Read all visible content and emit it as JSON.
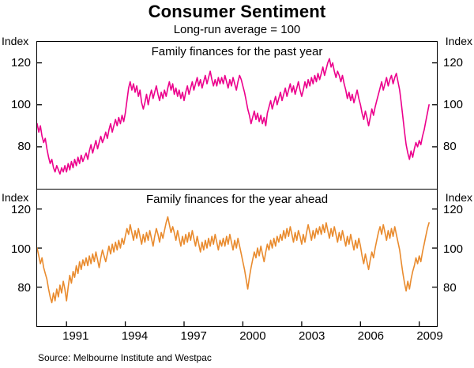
{
  "title": "Consumer Sentiment",
  "subtitle": "Long-run average = 100",
  "source": "Source: Melbourne Institute and Westpac",
  "axis_unit": "Index",
  "chart_data": [
    {
      "type": "line",
      "name": "Family finances for the past year",
      "ylabel": "Index",
      "color": "#ec008c",
      "ylim": [
        60,
        130
      ],
      "yticks": [
        80,
        100,
        120
      ],
      "xlim": [
        1989.5,
        2009.9
      ],
      "xticks": [
        1991,
        1994,
        1997,
        2000,
        2003,
        2006,
        2009
      ],
      "x_start": 1989.5,
      "x_frequency": "monthly",
      "values": [
        91,
        87,
        90,
        85,
        82,
        84,
        79,
        75,
        72,
        74,
        70,
        68,
        71,
        69,
        67,
        70,
        68,
        71,
        68,
        72,
        69,
        73,
        70,
        74,
        71,
        75,
        72,
        76,
        73,
        75,
        77,
        74,
        78,
        81,
        77,
        80,
        83,
        79,
        82,
        85,
        82,
        84,
        87,
        84,
        88,
        91,
        87,
        90,
        93,
        90,
        94,
        91,
        95,
        92,
        96,
        102,
        108,
        111,
        107,
        110,
        106,
        109,
        104,
        107,
        101,
        98,
        101,
        105,
        100,
        104,
        107,
        103,
        106,
        109,
        105,
        102,
        106,
        103,
        107,
        104,
        108,
        111,
        107,
        110,
        105,
        108,
        104,
        107,
        103,
        106,
        102,
        106,
        109,
        105,
        108,
        111,
        107,
        110,
        113,
        109,
        112,
        108,
        111,
        114,
        110,
        113,
        116,
        112,
        109,
        112,
        109,
        113,
        110,
        113,
        110,
        114,
        111,
        108,
        112,
        109,
        113,
        110,
        107,
        111,
        114,
        112,
        109,
        106,
        102,
        98,
        95,
        91,
        94,
        97,
        93,
        96,
        92,
        95,
        91,
        94,
        90,
        96,
        99,
        102,
        98,
        101,
        104,
        100,
        103,
        106,
        102,
        105,
        108,
        104,
        107,
        110,
        106,
        109,
        105,
        108,
        111,
        107,
        104,
        107,
        111,
        108,
        112,
        109,
        113,
        110,
        114,
        111,
        115,
        112,
        115,
        118,
        114,
        117,
        120,
        122,
        118,
        120,
        116,
        113,
        116,
        114,
        111,
        114,
        110,
        107,
        103,
        106,
        102,
        105,
        101,
        104,
        107,
        103,
        100,
        96,
        93,
        97,
        94,
        90,
        94,
        98,
        95,
        99,
        102,
        105,
        108,
        111,
        107,
        110,
        113,
        109,
        112,
        114,
        110,
        113,
        115,
        111,
        107,
        101,
        94,
        87,
        81,
        77,
        74,
        78,
        75,
        79,
        82,
        80,
        83,
        81,
        85,
        88,
        92,
        96,
        100
      ]
    },
    {
      "type": "line",
      "name": "Family finances for the year ahead",
      "ylabel": "Index",
      "color": "#e98b2e",
      "ylim": [
        60,
        130
      ],
      "yticks": [
        80,
        100,
        120
      ],
      "xlim": [
        1989.5,
        2009.9
      ],
      "xticks": [
        1991,
        1994,
        1997,
        2000,
        2003,
        2006,
        2009
      ],
      "x_start": 1989.5,
      "x_frequency": "monthly",
      "values": [
        100,
        96,
        92,
        95,
        90,
        87,
        84,
        79,
        75,
        72,
        77,
        73,
        79,
        75,
        81,
        77,
        83,
        79,
        73,
        80,
        86,
        82,
        88,
        85,
        91,
        87,
        93,
        89,
        94,
        91,
        95,
        91,
        96,
        92,
        97,
        93,
        98,
        94,
        90,
        95,
        99,
        96,
        93,
        97,
        101,
        97,
        102,
        98,
        103,
        99,
        104,
        100,
        105,
        102,
        106,
        110,
        107,
        112,
        108,
        104,
        109,
        105,
        110,
        106,
        102,
        107,
        103,
        108,
        104,
        109,
        105,
        101,
        106,
        110,
        107,
        103,
        108,
        105,
        109,
        113,
        116,
        112,
        108,
        111,
        108,
        104,
        109,
        105,
        101,
        106,
        102,
        107,
        103,
        108,
        104,
        109,
        105,
        101,
        106,
        102,
        98,
        103,
        99,
        104,
        100,
        105,
        101,
        106,
        102,
        107,
        103,
        99,
        104,
        101,
        105,
        101,
        106,
        102,
        107,
        103,
        99,
        104,
        100,
        105,
        101,
        97,
        93,
        89,
        84,
        79,
        85,
        90,
        94,
        98,
        95,
        100,
        96,
        101,
        97,
        93,
        98,
        102,
        99,
        104,
        100,
        105,
        101,
        106,
        103,
        107,
        104,
        109,
        105,
        110,
        106,
        111,
        107,
        103,
        108,
        104,
        109,
        106,
        102,
        107,
        103,
        108,
        112,
        108,
        104,
        109,
        105,
        110,
        107,
        111,
        107,
        112,
        108,
        113,
        109,
        105,
        110,
        106,
        111,
        107,
        103,
        108,
        104,
        109,
        105,
        101,
        106,
        102,
        107,
        103,
        99,
        104,
        100,
        105,
        101,
        96,
        92,
        97,
        93,
        89,
        94,
        98,
        95,
        100,
        104,
        108,
        111,
        107,
        112,
        108,
        104,
        109,
        105,
        110,
        106,
        111,
        107,
        103,
        99,
        93,
        87,
        82,
        78,
        83,
        79,
        84,
        88,
        91,
        95,
        92,
        96,
        93,
        98,
        102,
        106,
        110,
        113
      ]
    }
  ]
}
